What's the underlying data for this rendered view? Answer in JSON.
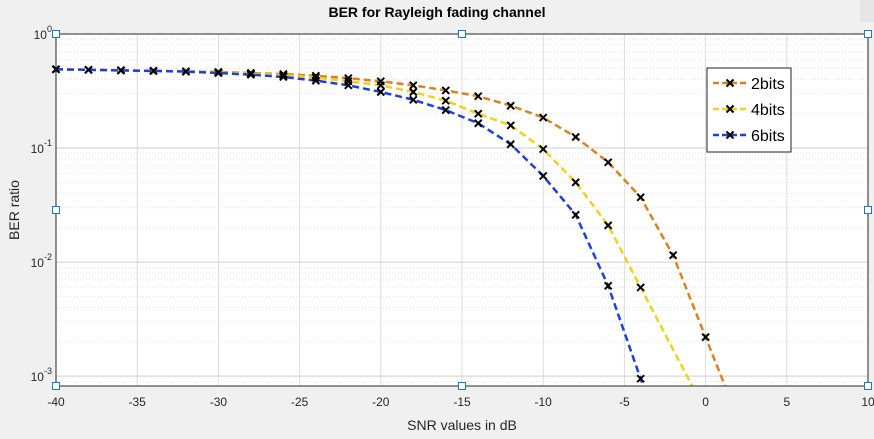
{
  "chart_data": {
    "type": "line",
    "title": "BER for Rayleigh fading channel",
    "xlabel": "SNR values in dB",
    "ylabel": "BER ratio",
    "xlim": [
      -40,
      10
    ],
    "ylim": [
      0.00082,
      1
    ],
    "yscale": "log",
    "grid": true,
    "legend_position": "top-right",
    "x_ticks": [
      -40,
      -35,
      -30,
      -25,
      -20,
      -15,
      -10,
      -5,
      0,
      5,
      10
    ],
    "y_ticks": [
      {
        "value": 1,
        "base": "10",
        "exp": "0"
      },
      {
        "value": 0.1,
        "base": "10",
        "exp": "-1"
      },
      {
        "value": 0.01,
        "base": "10",
        "exp": "-2"
      },
      {
        "value": 0.001,
        "base": "10",
        "exp": "-3"
      }
    ],
    "x": [
      -40,
      -38,
      -36,
      -34,
      -32,
      -30,
      -28,
      -26,
      -24,
      -22,
      -20,
      -18,
      -16,
      -14,
      -12,
      -10,
      -8,
      -6,
      -4,
      -2,
      0
    ],
    "series": [
      {
        "name": "2bits",
        "color": "#d9821f",
        "values": [
          0.49,
          0.485,
          0.48,
          0.475,
          0.47,
          0.465,
          0.455,
          0.445,
          0.43,
          0.41,
          0.385,
          0.355,
          0.32,
          0.285,
          0.235,
          0.185,
          0.125,
          0.075,
          0.037,
          0.0115,
          0.0022
        ]
      },
      {
        "name": "4bits",
        "color": "#f0d020",
        "values": [
          0.49,
          0.485,
          0.48,
          0.475,
          0.47,
          0.46,
          0.45,
          0.435,
          0.415,
          0.385,
          0.355,
          0.31,
          0.26,
          0.2,
          0.158,
          0.098,
          0.05,
          0.021,
          0.006,
          null,
          null
        ]
      },
      {
        "name": "6bits",
        "color": "#1f3fd9",
        "values": [
          0.49,
          0.485,
          0.48,
          0.475,
          0.468,
          0.455,
          0.44,
          0.42,
          0.39,
          0.355,
          0.31,
          0.265,
          0.215,
          0.165,
          0.108,
          0.057,
          0.026,
          0.0062,
          0.00095,
          null,
          null
        ]
      }
    ]
  }
}
